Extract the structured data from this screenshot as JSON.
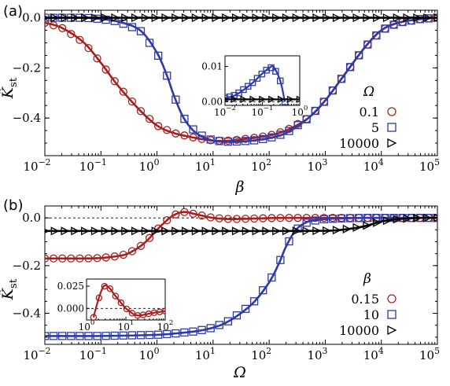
{
  "chart_data": [
    {
      "type": "line",
      "panel_label": "(a)",
      "xlabel": "β",
      "ylabel_main": "K̃",
      "ylabel_sub": "st",
      "xscale": "log",
      "xlim": [
        0.01,
        100000
      ],
      "ylim": [
        -0.55,
        0.03
      ],
      "x_tick_labels": [
        {
          "base": "10",
          "exp": "−2",
          "value": 0.01
        },
        {
          "base": "10",
          "exp": "−1",
          "value": 0.1
        },
        {
          "base": "10",
          "exp": "0",
          "value": 1
        },
        {
          "base": "10",
          "exp": "1",
          "value": 10
        },
        {
          "base": "10",
          "exp": "2",
          "value": 100
        },
        {
          "base": "10",
          "exp": "3",
          "value": 1000
        },
        {
          "base": "10",
          "exp": "4",
          "value": 10000
        },
        {
          "base": "10",
          "exp": "5",
          "value": 100000
        }
      ],
      "y_ticks": [
        0.0,
        -0.2,
        -0.4
      ],
      "y_tick_labels": [
        "0.0",
        "−0.2",
        "−0.4"
      ],
      "legend_title": "Ω",
      "legend_position": "center-right",
      "series": [
        {
          "name": "0.1",
          "color": "#a81f1f",
          "marker": "circle",
          "x": [
            0.01,
            0.02,
            0.05,
            0.1,
            0.2,
            0.5,
            1,
            2,
            5,
            10,
            20,
            50,
            100,
            200,
            500,
            1000,
            2000,
            5000,
            10000,
            20000,
            50000,
            100000
          ],
          "y": [
            -0.02,
            -0.04,
            -0.1,
            -0.18,
            -0.27,
            -0.37,
            -0.43,
            -0.46,
            -0.48,
            -0.49,
            -0.49,
            -0.48,
            -0.47,
            -0.45,
            -0.4,
            -0.33,
            -0.24,
            -0.12,
            -0.05,
            -0.02,
            -0.005,
            0.0
          ]
        },
        {
          "name": "5",
          "color": "#2e3aa8",
          "marker": "square",
          "x": [
            0.01,
            0.05,
            0.1,
            0.2,
            0.5,
            1,
            1.5,
            2,
            3,
            5,
            10,
            20,
            50,
            100,
            200,
            500,
            1000,
            2000,
            5000,
            10000,
            20000,
            50000,
            100000
          ],
          "y": [
            0.0,
            0.0,
            -0.005,
            -0.015,
            -0.05,
            -0.14,
            -0.23,
            -0.31,
            -0.4,
            -0.46,
            -0.49,
            -0.495,
            -0.49,
            -0.48,
            -0.46,
            -0.4,
            -0.33,
            -0.24,
            -0.12,
            -0.05,
            -0.02,
            -0.005,
            0.0
          ]
        },
        {
          "name": "10000",
          "color": "#000000",
          "marker": "triangle-right",
          "x": [
            0.01,
            0.1,
            1,
            10,
            100,
            1000,
            10000,
            100000
          ],
          "y": [
            0.0,
            0.0,
            0.0,
            0.0,
            0.0,
            0.0,
            0.0,
            0.0
          ]
        }
      ],
      "inset": {
        "xscale": "log",
        "xlim": [
          0.01,
          1
        ],
        "ylim": [
          -0.001,
          0.013
        ],
        "x_tick_labels": [
          {
            "base": "10",
            "exp": "−2",
            "value": 0.01
          },
          {
            "base": "10",
            "exp": "−1",
            "value": 0.1
          },
          {
            "base": "10",
            "exp": "0",
            "value": 1
          }
        ],
        "y_ticks": [
          0.0,
          0.01
        ],
        "y_tick_labels": [
          "0.00",
          "0.01"
        ],
        "series": [
          {
            "name": "5",
            "x": [
              0.01,
              0.02,
              0.05,
              0.1,
              0.15,
              0.2,
              0.3,
              0.4
            ],
            "y": [
              0.001,
              0.002,
              0.005,
              0.008,
              0.0095,
              0.0098,
              0.006,
              0.0
            ]
          },
          {
            "name": "10000",
            "x": [
              0.01,
              0.1,
              1
            ],
            "y": [
              0.0007,
              0.0007,
              0.0007
            ]
          }
        ]
      }
    },
    {
      "type": "line",
      "panel_label": "(b)",
      "xlabel": "Ω",
      "ylabel_main": "K̃",
      "ylabel_sub": "st",
      "xscale": "log",
      "xlim": [
        0.01,
        100000
      ],
      "ylim": [
        -0.53,
        0.05
      ],
      "x_tick_labels": [
        {
          "base": "10",
          "exp": "−2",
          "value": 0.01
        },
        {
          "base": "10",
          "exp": "−1",
          "value": 0.1
        },
        {
          "base": "10",
          "exp": "0",
          "value": 1
        },
        {
          "base": "10",
          "exp": "1",
          "value": 10
        },
        {
          "base": "10",
          "exp": "2",
          "value": 100
        },
        {
          "base": "10",
          "exp": "3",
          "value": 1000
        },
        {
          "base": "10",
          "exp": "4",
          "value": 10000
        },
        {
          "base": "10",
          "exp": "5",
          "value": 100000
        }
      ],
      "y_ticks": [
        0.0,
        -0.2,
        -0.4
      ],
      "y_tick_labels": [
        "0.0",
        "−0.2",
        "−0.4"
      ],
      "legend_title": "β",
      "legend_position": "center-right",
      "series": [
        {
          "name": "0.15",
          "color": "#a81f1f",
          "marker": "circle",
          "x": [
            0.01,
            0.02,
            0.05,
            0.1,
            0.2,
            0.3,
            0.5,
            0.7,
            1,
            1.5,
            2,
            3,
            5,
            10,
            20,
            50,
            100,
            200,
            500,
            1000,
            2000,
            5000,
            10000,
            20000,
            50000,
            100000
          ],
          "y": [
            -0.17,
            -0.17,
            -0.17,
            -0.168,
            -0.16,
            -0.15,
            -0.12,
            -0.09,
            -0.05,
            -0.01,
            0.012,
            0.025,
            0.015,
            0.0,
            -0.005,
            -0.003,
            -0.001,
            0.0,
            0.0,
            0.0,
            0.0,
            0.0,
            0.0,
            0.0,
            0.0,
            0.0
          ]
        },
        {
          "name": "10",
          "color": "#2e3aa8",
          "marker": "square",
          "x": [
            0.01,
            0.1,
            1,
            2,
            5,
            10,
            20,
            50,
            100,
            150,
            200,
            300,
            500,
            1000,
            2000,
            5000,
            10000,
            20000,
            50000,
            100000
          ],
          "y": [
            -0.495,
            -0.495,
            -0.49,
            -0.485,
            -0.475,
            -0.46,
            -0.43,
            -0.36,
            -0.27,
            -0.19,
            -0.12,
            -0.05,
            -0.015,
            -0.005,
            -0.002,
            0.0,
            0.0,
            0.0,
            0.0,
            0.0
          ]
        },
        {
          "name": "10000",
          "color": "#000000",
          "marker": "triangle-right",
          "x": [
            0.01,
            0.1,
            1,
            10,
            100,
            1000,
            2000,
            5000,
            10000,
            20000,
            50000,
            100000
          ],
          "y": [
            -0.055,
            -0.055,
            -0.055,
            -0.055,
            -0.055,
            -0.054,
            -0.05,
            -0.035,
            -0.015,
            -0.005,
            0.0,
            0.0
          ]
        }
      ],
      "inset": {
        "xscale": "log",
        "xlim": [
          1,
          100
        ],
        "ylim": [
          -0.013,
          0.033
        ],
        "x_tick_labels": [
          {
            "base": "10",
            "exp": "0",
            "value": 1
          },
          {
            "base": "10",
            "exp": "1",
            "value": 10
          },
          {
            "base": "10",
            "exp": "2",
            "value": 100
          }
        ],
        "y_ticks": [
          0.0,
          0.025
        ],
        "y_tick_labels": [
          "0.000",
          "0.025"
        ],
        "series": [
          {
            "name": "0.15",
            "x": [
              1.5,
              2,
              2.5,
              3,
              4,
              5,
              7,
              10,
              15,
              20,
              30,
              50,
              70,
              100
            ],
            "y": [
              -0.01,
              0.01,
              0.022,
              0.026,
              0.022,
              0.016,
              0.008,
              0.0,
              -0.006,
              -0.008,
              -0.007,
              -0.005,
              -0.004,
              -0.003
            ]
          }
        ]
      }
    }
  ]
}
